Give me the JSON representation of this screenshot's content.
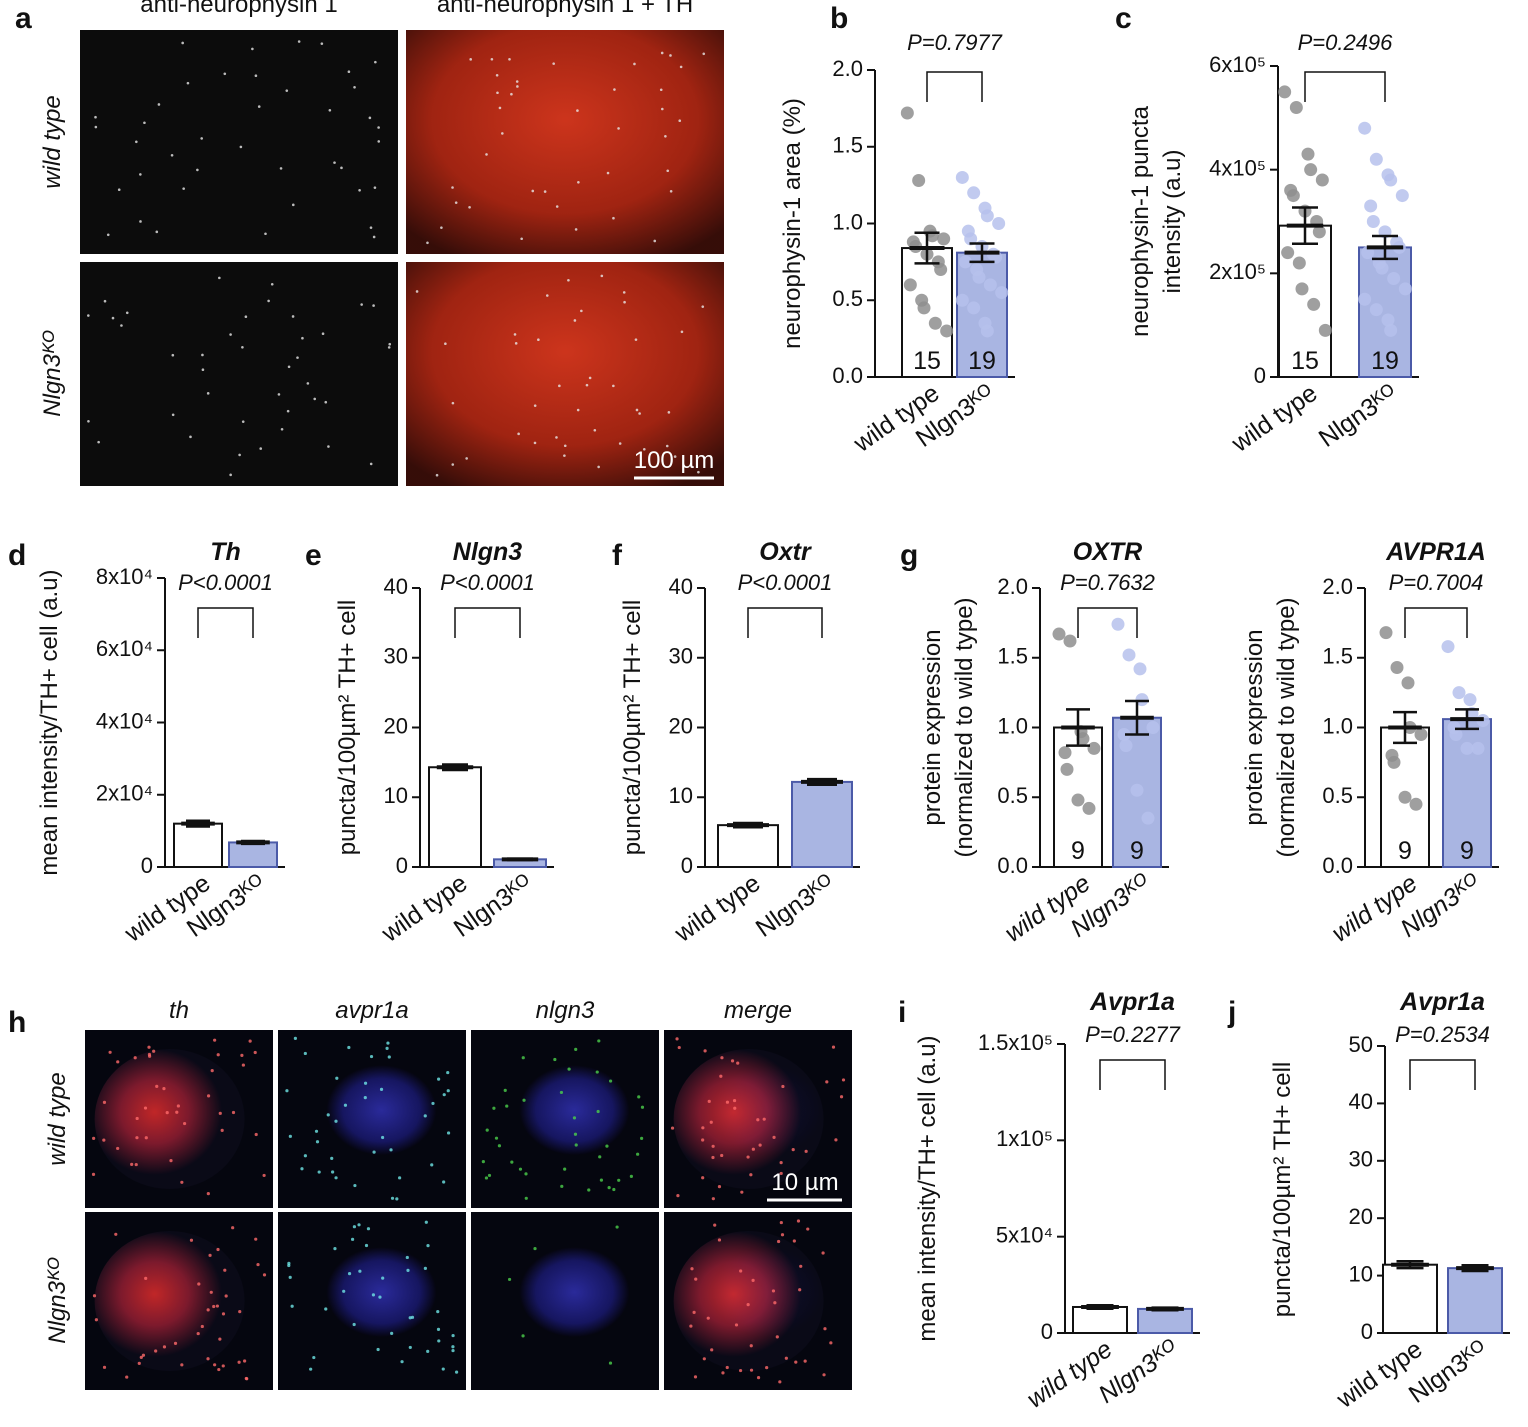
{
  "image_panels": [
    {
      "panel": "a",
      "columns": [
        "anti-neurophysin 1",
        "anti-neurophysin 1 + TH"
      ],
      "rows": [
        "wild type",
        "Nlgn3ᴷᴼ"
      ],
      "scale_bar": "100 µm"
    },
    {
      "panel": "h",
      "columns": [
        "th",
        "avpr1a",
        "nlgn3",
        "merge"
      ],
      "rows": [
        "wild type",
        "Nlgn3ᴷᴼ"
      ],
      "scale_bar": "10 µm"
    }
  ],
  "chart_data": [
    {
      "type": "bar",
      "panel": "b",
      "ylabel": [
        "neurophysin-1 area (%)"
      ],
      "p_value": "P=0.7977",
      "categories": [
        "wild type",
        "Nlgn3ᴷᴼ"
      ],
      "values": [
        0.84,
        0.81
      ],
      "errors": [
        0.1,
        0.06
      ],
      "n": [
        15,
        19
      ],
      "points": [
        [
          1.72,
          1.28,
          0.95,
          0.92,
          0.9,
          0.88,
          0.85,
          0.8,
          0.75,
          0.7,
          0.6,
          0.5,
          0.45,
          0.35,
          0.3
        ],
        [
          1.3,
          1.2,
          1.1,
          1.05,
          1.0,
          0.95,
          0.9,
          0.85,
          0.8,
          0.78,
          0.75,
          0.7,
          0.65,
          0.6,
          0.55,
          0.5,
          0.45,
          0.35,
          0.3
        ]
      ],
      "ylim": [
        0,
        2
      ],
      "yticks": [
        {
          "value": 0,
          "label": "0.0"
        },
        0.5,
        {
          "value": 1,
          "label": "1.0"
        },
        1.5,
        {
          "value": 2,
          "label": "2.0"
        }
      ],
      "colors": [
        "#ffffff",
        "#a9b5e2"
      ]
    },
    {
      "type": "bar",
      "panel": "c",
      "ylabel": [
        "neurophysin-1 puncta",
        "intensity (a.u)"
      ],
      "p_value": "P=0.2496",
      "categories": [
        "wild type",
        "Nlgn3ᴷᴼ"
      ],
      "values": [
        292000,
        250000
      ],
      "errors": [
        35000,
        22000
      ],
      "n": [
        15,
        19
      ],
      "points": [
        [
          550000,
          520000,
          430000,
          400000,
          380000,
          360000,
          350000,
          320000,
          300000,
          280000,
          240000,
          220000,
          170000,
          140000,
          90000
        ],
        [
          480000,
          420000,
          390000,
          380000,
          350000,
          330000,
          300000,
          280000,
          260000,
          250000,
          240000,
          220000,
          210000,
          190000,
          170000,
          150000,
          130000,
          110000,
          90000
        ]
      ],
      "ylim": [
        0,
        600000
      ],
      "yticks": [
        0,
        {
          "value": 200000,
          "label": "2x10⁵"
        },
        {
          "value": 400000,
          "label": "4x10⁵"
        },
        {
          "value": 600000,
          "label": "6x10⁵"
        }
      ],
      "colors": [
        "#ffffff",
        "#a9b5e2"
      ]
    },
    {
      "type": "bar",
      "panel": "d",
      "title": "Th",
      "ylabel": [
        "mean intensity/TH+ cell (a.u)"
      ],
      "p_value": "P<0.0001",
      "categories": [
        "wild type",
        "Nlgn3ᴷᴼ"
      ],
      "values": [
        12000,
        6800
      ],
      "errors": [
        800,
        400
      ],
      "ylim": [
        0,
        80000
      ],
      "yticks": [
        0,
        {
          "value": 20000,
          "label": "2x10⁴"
        },
        {
          "value": 40000,
          "label": "4x10⁴"
        },
        {
          "value": 60000,
          "label": "6x10⁴"
        },
        {
          "value": 80000,
          "label": "8x10⁴"
        }
      ],
      "colors": [
        "#ffffff",
        "#a9b5e2"
      ]
    },
    {
      "type": "bar",
      "panel": "e",
      "title": "Nlgn3",
      "ylabel": [
        "puncta/100µm² TH+ cell"
      ],
      "p_value": "P<0.0001",
      "categories": [
        "wild type",
        "Nlgn3ᴷᴼ"
      ],
      "values": [
        14.3,
        1.1
      ],
      "errors": [
        0.4,
        0.1
      ],
      "ylim": [
        0,
        40
      ],
      "yticks": [
        0,
        10,
        20,
        30,
        40
      ],
      "colors": [
        "#ffffff",
        "#a9b5e2"
      ]
    },
    {
      "type": "bar",
      "panel": "f",
      "title": "Oxtr",
      "ylabel": [
        "puncta/100µm² TH+ cell"
      ],
      "p_value": "P<0.0001",
      "categories": [
        "wild type",
        "Nlgn3ᴷᴼ"
      ],
      "values": [
        6.0,
        12.2
      ],
      "errors": [
        0.3,
        0.4
      ],
      "ylim": [
        0,
        40
      ],
      "yticks": [
        0,
        10,
        20,
        30,
        40
      ],
      "colors": [
        "#ffffff",
        "#a9b5e2"
      ]
    },
    {
      "type": "bar",
      "panel": "g",
      "title": "OXTR",
      "ylabel": [
        "protein expression",
        "(normalized to wild type)"
      ],
      "p_value": "P=0.7632",
      "categories": [
        "wild type",
        "Nlgn3ᴷᴼ"
      ],
      "values": [
        1.0,
        1.07
      ],
      "errors": [
        0.13,
        0.12
      ],
      "n": [
        9,
        9
      ],
      "points": [
        [
          1.67,
          1.62,
          0.97,
          0.92,
          0.85,
          0.82,
          0.7,
          0.48,
          0.42
        ],
        [
          1.74,
          1.52,
          1.42,
          1.2,
          1.0,
          0.95,
          0.87,
          0.55,
          0.35
        ]
      ],
      "italic_categories": true,
      "ylim": [
        0,
        2
      ],
      "yticks": [
        {
          "value": 0,
          "label": "0.0"
        },
        0.5,
        {
          "value": 1,
          "label": "1.0"
        },
        1.5,
        {
          "value": 2,
          "label": "2.0"
        }
      ],
      "colors": [
        "#ffffff",
        "#a9b5e2"
      ]
    },
    {
      "type": "bar",
      "title": "AVPR1A",
      "ylabel": [
        "protein expression",
        "(normalized to wild type)"
      ],
      "p_value": "P=0.7004",
      "categories": [
        "wild type",
        "Nlgn3ᴷᴼ"
      ],
      "values": [
        1.0,
        1.06
      ],
      "errors": [
        0.11,
        0.07
      ],
      "n": [
        9,
        9
      ],
      "points": [
        [
          1.68,
          1.43,
          1.32,
          1.0,
          0.95,
          0.8,
          0.75,
          0.5,
          0.45
        ],
        [
          1.58,
          1.25,
          1.2,
          1.1,
          1.05,
          1.0,
          0.95,
          0.85,
          0.85
        ]
      ],
      "italic_categories": true,
      "ylim": [
        0,
        2
      ],
      "yticks": [
        {
          "value": 0,
          "label": "0.0"
        },
        0.5,
        {
          "value": 1,
          "label": "1.0"
        },
        1.5,
        {
          "value": 2,
          "label": "2.0"
        }
      ],
      "colors": [
        "#ffffff",
        "#a9b5e2"
      ]
    },
    {
      "type": "bar",
      "panel": "i",
      "title": "Avpr1a",
      "ylabel": [
        "mean intensity/TH+ cell (a.u)"
      ],
      "p_value": "P=0.2277",
      "categories": [
        "wild type",
        "Nlgn3ᴷᴼ"
      ],
      "values": [
        13500,
        12500
      ],
      "errors": [
        900,
        700
      ],
      "italic_categories": true,
      "ylim": [
        0,
        150000
      ],
      "yticks": [
        0,
        {
          "value": 50000,
          "label": "5x10⁴"
        },
        {
          "value": 100000,
          "label": "1x10⁵"
        },
        {
          "value": 150000,
          "label": "1.5x10⁵"
        }
      ],
      "colors": [
        "#ffffff",
        "#a9b5e2"
      ]
    },
    {
      "type": "bar",
      "panel": "j",
      "title": "Avpr1a",
      "ylabel": [
        "puncta/100µm² TH+ cell"
      ],
      "p_value": "P=0.2534",
      "categories": [
        "wild type",
        "Nlgn3ᴷᴼ"
      ],
      "values": [
        11.9,
        11.3
      ],
      "errors": [
        0.6,
        0.5
      ],
      "ylim": [
        0,
        50
      ],
      "yticks": [
        0,
        10,
        20,
        30,
        40,
        50
      ],
      "colors": [
        "#ffffff",
        "#a9b5e2"
      ]
    }
  ]
}
